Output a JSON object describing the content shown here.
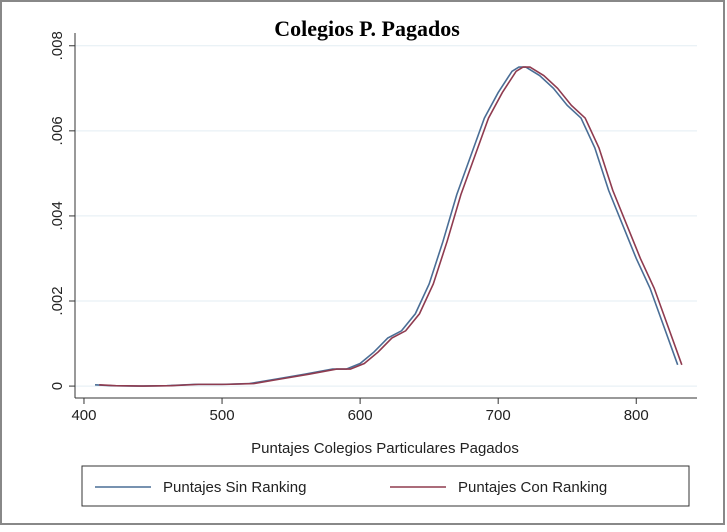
{
  "chart_data": {
    "type": "line",
    "title": "Colegios P. Pagados",
    "x_label": "Puntajes Colegios Particulares Pagados",
    "xlim": [
      393.5,
      844
    ],
    "xticks": [
      400,
      500,
      600,
      700,
      800
    ],
    "ylim": [
      -0.00028,
      0.0083
    ],
    "yticks": [
      0,
      {
        "value": 0.002,
        "label": ".002"
      },
      {
        "value": 0.004,
        "label": ".004"
      },
      {
        "value": 0.006,
        "label": ".006"
      },
      {
        "value": 0.008,
        "label": ".008"
      }
    ],
    "grid": true,
    "legend": "bottom",
    "series": [
      {
        "name": "Puntajes Sin Ranking",
        "color": "#4a6e96",
        "x": [
          408,
          420,
          440,
          460,
          480,
          500,
          520,
          540,
          560,
          580,
          590,
          600,
          610,
          620,
          630,
          640,
          650,
          660,
          670,
          680,
          690,
          700,
          710,
          715,
          720,
          730,
          740,
          750,
          760,
          770,
          780,
          790,
          800,
          810,
          820,
          830
        ],
        "values": [
          3e-05,
          1e-05,
          0.0,
          1e-05,
          4e-05,
          4e-05,
          6e-05,
          0.00017,
          0.00028,
          0.0004,
          0.0004,
          0.00053,
          0.0008,
          0.00113,
          0.0013,
          0.0017,
          0.0024,
          0.0034,
          0.0045,
          0.0054,
          0.0063,
          0.0069,
          0.0074,
          0.0075,
          0.0075,
          0.0073,
          0.007,
          0.0066,
          0.0063,
          0.0056,
          0.0046,
          0.0038,
          0.003,
          0.0023,
          0.0014,
          0.0005
        ]
      },
      {
        "name": "Puntajes Con Ranking",
        "color": "#8f3b4f",
        "x": [
          411,
          423,
          443,
          463,
          483,
          503,
          523,
          543,
          563,
          583,
          593,
          603,
          613,
          623,
          633,
          643,
          653,
          663,
          673,
          683,
          693,
          703,
          713,
          718,
          723,
          733,
          743,
          753,
          763,
          773,
          783,
          793,
          803,
          813,
          823,
          833
        ],
        "values": [
          3e-05,
          1e-05,
          0.0,
          1e-05,
          4e-05,
          4e-05,
          6e-05,
          0.00017,
          0.00028,
          0.0004,
          0.0004,
          0.00053,
          0.0008,
          0.00113,
          0.0013,
          0.0017,
          0.0024,
          0.0034,
          0.0045,
          0.0054,
          0.0063,
          0.0069,
          0.0074,
          0.0075,
          0.0075,
          0.0073,
          0.007,
          0.0066,
          0.0063,
          0.0056,
          0.0046,
          0.0038,
          0.003,
          0.0023,
          0.0014,
          0.0005
        ]
      }
    ]
  }
}
